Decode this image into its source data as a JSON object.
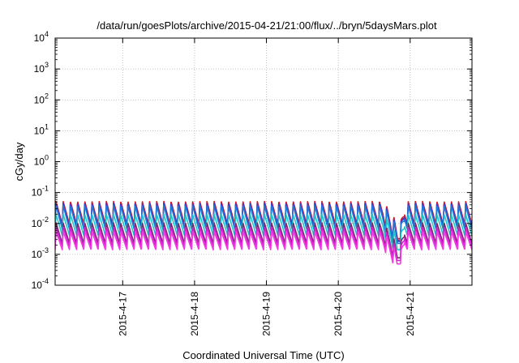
{
  "chart_data": {
    "type": "line",
    "title": "/data/run/goesPlots/archive/2015-04-21/21:00/flux/../bryn/5daysMars.plot",
    "xlabel": "Coordinated Universal Time (UTC)",
    "ylabel": "cGy/day",
    "y_scale": "log",
    "ylim_exp": [
      -4,
      4
    ],
    "y_ticks": [
      {
        "base": "10",
        "exp": "4"
      },
      {
        "base": "10",
        "exp": "3"
      },
      {
        "base": "10",
        "exp": "2"
      },
      {
        "base": "10",
        "exp": "1"
      },
      {
        "base": "10",
        "exp": "0"
      },
      {
        "base": "10",
        "exp": "-1"
      },
      {
        "base": "10",
        "exp": "-2"
      },
      {
        "base": "10",
        "exp": "-3"
      },
      {
        "base": "10",
        "exp": "-4"
      }
    ],
    "xlim_days": [
      16.06,
      21.86
    ],
    "x_ticks": [
      {
        "label": "2015-4-17",
        "day": 17
      },
      {
        "label": "2015-4-18",
        "day": 18
      },
      {
        "label": "2015-4-19",
        "day": 19
      },
      {
        "label": "2015-4-20",
        "day": 20
      },
      {
        "label": "2015-4-21",
        "day": 21
      }
    ],
    "grid": true,
    "legend": "none",
    "oscillation": {
      "period_days": 0.1,
      "event_dip": {
        "start_day": 20.62,
        "center_day": 20.85,
        "end_day": 20.92
      }
    },
    "series": [
      {
        "color": "#d7191c",
        "peak": 0.052,
        "trough": 0.0092
      },
      {
        "color": "#9e1f63",
        "peak": 0.046,
        "trough": 0.0082
      },
      {
        "color": "#3a3fd0",
        "peak": 0.044,
        "trough": 0.0074
      },
      {
        "color": "#1e7ad8",
        "peak": 0.038,
        "trough": 0.0064
      },
      {
        "color": "#20c4c8",
        "peak": 0.02,
        "trough": 0.004
      },
      {
        "color": "#7a2a6e",
        "peak": 0.0105,
        "trough": 0.0022
      },
      {
        "color": "#d21fd2",
        "peak": 0.0075,
        "trough": 0.0018
      },
      {
        "color": "#f03ce0",
        "peak": 0.0055,
        "trough": 0.0014
      }
    ]
  }
}
